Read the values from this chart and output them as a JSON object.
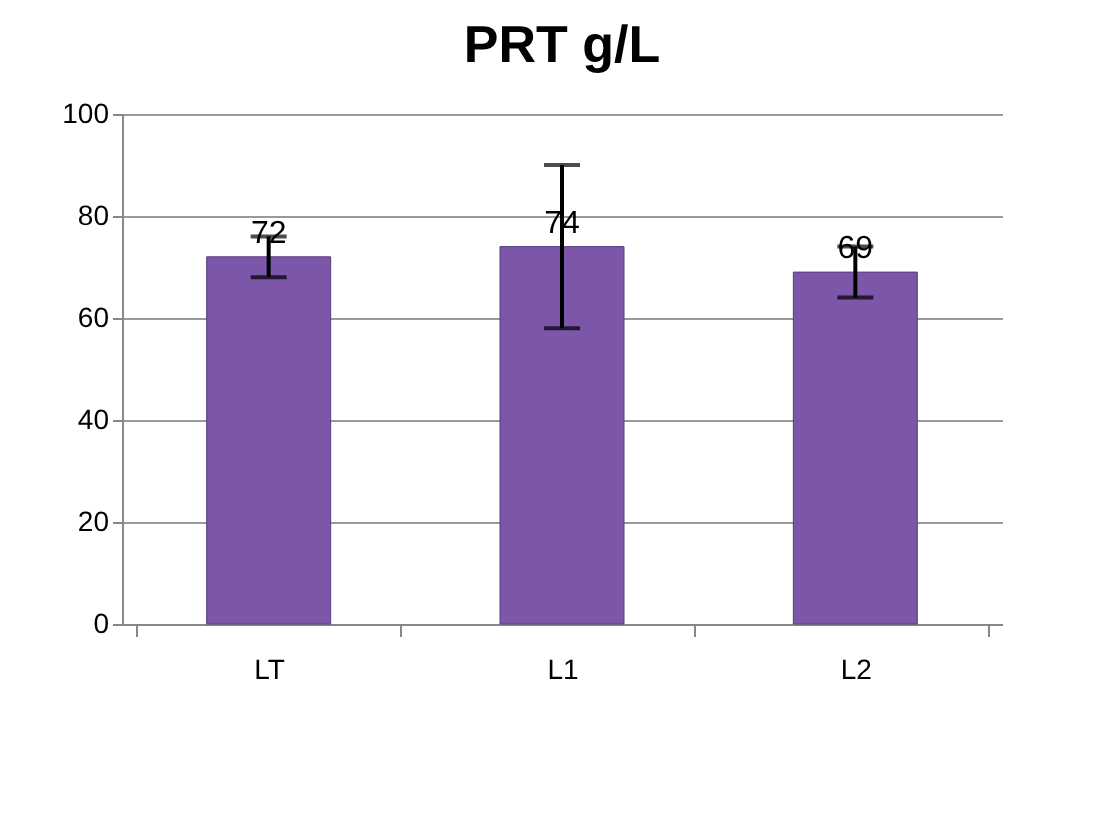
{
  "chart_data": {
    "type": "bar",
    "title": "PRT g/L",
    "categories": [
      "LT",
      "L1",
      "L2"
    ],
    "values": [
      72,
      74,
      69
    ],
    "errors": [
      4,
      16,
      5
    ],
    "color": "#7b56a9",
    "data_labels": true,
    "ylim": [
      0,
      100
    ],
    "yticks": [
      0,
      20,
      40,
      60,
      80,
      100
    ],
    "grid": "y"
  }
}
